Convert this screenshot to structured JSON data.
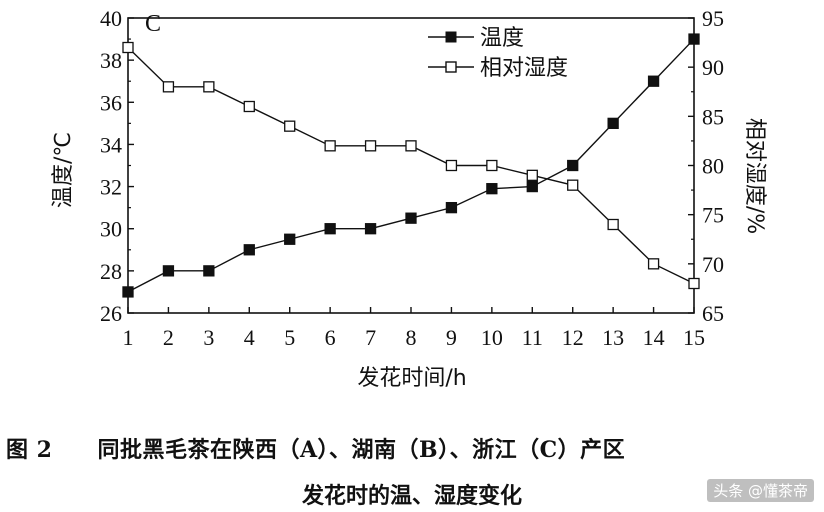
{
  "chart_data": {
    "type": "line",
    "panel_label": "C",
    "xlabel": "发花时间/h",
    "ylabel_left": "温度/℃",
    "ylabel_right": "相对湿度/%",
    "x": [
      1,
      2,
      3,
      4,
      5,
      6,
      7,
      8,
      9,
      10,
      11,
      12,
      13,
      14,
      15
    ],
    "ylim_left": [
      26,
      40
    ],
    "ylim_right": [
      65,
      95
    ],
    "yticks_left": [
      26,
      28,
      30,
      32,
      34,
      36,
      38,
      40
    ],
    "yticks_right": [
      65,
      70,
      75,
      80,
      85,
      90,
      95
    ],
    "legend_position": "top-center",
    "series": [
      {
        "name": "温度",
        "axis": "left",
        "marker": "filled-square",
        "values": [
          27.0,
          28.0,
          28.0,
          29.0,
          29.5,
          30.0,
          30.0,
          30.5,
          31.0,
          31.9,
          32.0,
          33.0,
          35.0,
          37.0,
          39.0
        ]
      },
      {
        "name": "相对湿度",
        "axis": "right",
        "marker": "open-square",
        "values": [
          92,
          88,
          88,
          86,
          84,
          82,
          82,
          82,
          80,
          80,
          79,
          78,
          74,
          70,
          68
        ]
      }
    ]
  },
  "caption": {
    "line1": "图 2　　同批黑毛茶在陕西（A）、湖南（B）、浙江（C）产区",
    "line2": "发花时的温、湿度变化"
  },
  "watermark": "头条 @懂茶帝"
}
